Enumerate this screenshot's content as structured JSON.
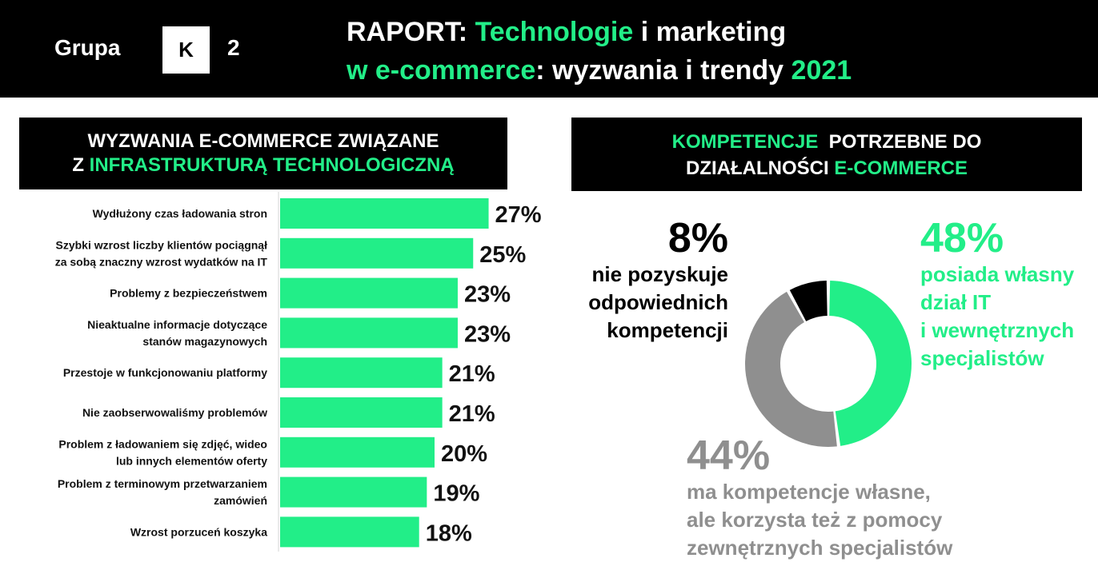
{
  "header": {
    "logo_word": "Grupa",
    "logo_letter": "K",
    "logo_number": "2",
    "title_line1_a": "RAPORT: ",
    "title_line1_b": "Technologie",
    "title_line1_c": " i marketing",
    "title_line2_a": "w e-commerce",
    "title_line2_b": ": wyzwania i trendy ",
    "title_line2_c": "2021"
  },
  "left_banner": {
    "line1": "WYZWANIA E-COMMERCE ZWIĄZANE",
    "line2_a": "Z ",
    "line2_b": "INFRASTRUKTURĄ TECHNOLOGICZNĄ"
  },
  "right_banner": {
    "line1_a": "KOMPETENCJE",
    "line1_b": "  POTRZEBNE DO",
    "line2_a": "DZIAŁALNOŚCI ",
    "line2_b": "E-COMMERCE"
  },
  "colors": {
    "accent": "#22ee88",
    "dark": "#000000",
    "gray": "#8f8f8f"
  },
  "chart_data": [
    {
      "type": "bar",
      "orientation": "horizontal",
      "title": "WYZWANIA E-COMMERCE ZWIĄZANE Z INFRASTRUKTURĄ TECHNOLOGICZNĄ",
      "categories": [
        [
          "Wydłużony czas ładowania stron"
        ],
        [
          "Szybki wzrost liczby klientów pociągnął",
          "za sobą znaczny wzrost wydatków na IT"
        ],
        [
          "Problemy z bezpieczeństwem"
        ],
        [
          "Nieaktualne informacje dotyczące",
          "stanów magazynowych"
        ],
        [
          "Przestoje w funkcjonowaniu platformy"
        ],
        [
          "Nie zaobserwowaliśmy problemów"
        ],
        [
          "Problem z ładowaniem się zdjęć, wideo",
          "lub innych elementów oferty"
        ],
        [
          "Problem z terminowym przetwarzaniem",
          "zamówień"
        ],
        [
          "Wzrost porzuceń koszyka"
        ]
      ],
      "values": [
        27,
        25,
        23,
        23,
        21,
        21,
        20,
        19,
        18
      ],
      "value_labels": [
        "27%",
        "25%",
        "23%",
        "23%",
        "21%",
        "21%",
        "20%",
        "19%",
        "18%"
      ],
      "bar_color": "#22ee88"
    },
    {
      "type": "pie",
      "variant": "donut",
      "title": "KOMPETENCJE POTRZEBNE DO DZIAŁALNOŚCI E-COMMERCE",
      "slices": [
        {
          "value": 48,
          "label": "48%",
          "description": [
            "posiada własny",
            "dział IT",
            "i wewnętrznych",
            "specjalistów"
          ],
          "color": "#22ee88"
        },
        {
          "value": 44,
          "label": "44%",
          "description": [
            "ma kompetencje własne,",
            "ale korzysta też z pomocy",
            "zewnętrznych specjalistów"
          ],
          "color": "#8f8f8f"
        },
        {
          "value": 8,
          "label": "8%",
          "description": [
            "nie pozyskuje",
            "odpowiednich",
            "kompetencji"
          ],
          "color": "#000000"
        }
      ]
    }
  ]
}
